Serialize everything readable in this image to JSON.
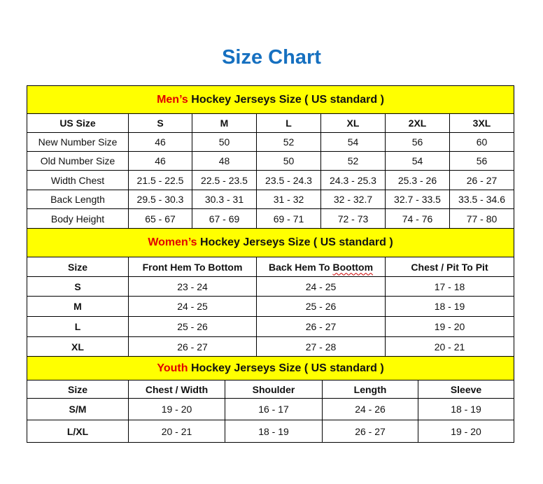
{
  "title": "Size Chart",
  "men": {
    "prefix": "Men’s",
    "heading": " Hockey Jerseys Size ( US standard )",
    "columns": [
      "US Size",
      "S",
      "M",
      "L",
      "XL",
      "2XL",
      "3XL"
    ],
    "rows": [
      [
        "New Number Size",
        "46",
        "50",
        "52",
        "54",
        "56",
        "60"
      ],
      [
        "Old Number Size",
        "46",
        "48",
        "50",
        "52",
        "54",
        "56"
      ],
      [
        "Width Chest",
        "21.5 - 22.5",
        "22.5 - 23.5",
        "23.5 - 24.3",
        "24.3 - 25.3",
        "25.3 - 26",
        "26 - 27"
      ],
      [
        "Back Length",
        "29.5 - 30.3",
        "30.3 - 31",
        "31 - 32",
        "32 - 32.7",
        "32.7 - 33.5",
        "33.5 - 34.6"
      ],
      [
        "Body Height",
        "65 - 67",
        "67 - 69",
        "69 - 71",
        "72 - 73",
        "74 - 76",
        "77 - 80"
      ]
    ]
  },
  "women": {
    "prefix": "Women’s",
    "heading": " Hockey Jerseys Size ( US standard )",
    "columns": [
      "Size",
      "Front Hem To Bottom",
      "Back Hem To Boottom",
      "Chest / Pit To Pit"
    ],
    "rows": [
      [
        "S",
        "23 - 24",
        "24 - 25",
        "17 - 18"
      ],
      [
        "M",
        "24 - 25",
        "25 - 26",
        "18 - 19"
      ],
      [
        "L",
        "25 - 26",
        "26 - 27",
        "19 - 20"
      ],
      [
        "XL",
        "26 - 27",
        "27 - 28",
        "20 - 21"
      ]
    ]
  },
  "youth": {
    "prefix": "Youth",
    "heading": " Hockey Jerseys Size ( US standard )",
    "columns": [
      "Size",
      "Chest / Width",
      "Shoulder",
      "Length",
      "Sleeve"
    ],
    "rows": [
      [
        "S/M",
        "19 - 20",
        "16 - 17",
        "24 - 26",
        "18 - 19"
      ],
      [
        "L/XL",
        "20 - 21",
        "18 - 19",
        "26 - 27",
        "19 - 20"
      ]
    ]
  }
}
